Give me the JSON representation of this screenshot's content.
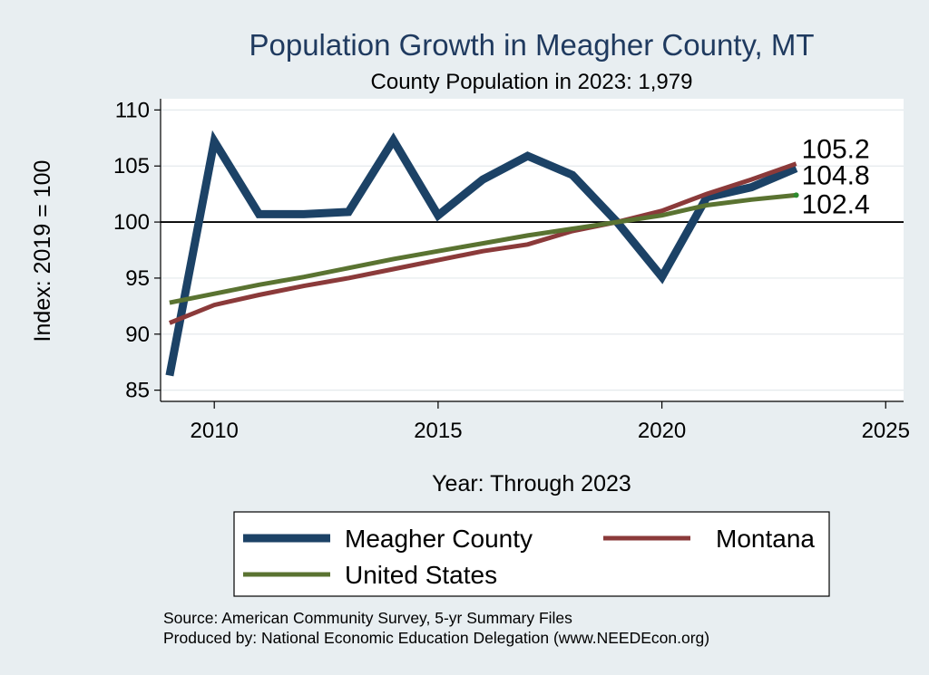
{
  "chart_data": {
    "type": "line",
    "title": "Population Growth in Meagher County, MT",
    "subtitle": "County Population in 2023: 1,979",
    "xlabel": "Year: Through 2023",
    "ylabel": "Index: 2019 = 100",
    "xlim": [
      2008.8,
      2025.4
    ],
    "ylim": [
      84,
      111
    ],
    "xticks": [
      2010,
      2015,
      2020,
      2025
    ],
    "yticks": [
      85,
      90,
      95,
      100,
      105,
      110
    ],
    "reference_line": 100,
    "series": [
      {
        "name": "Meagher  County",
        "color": "#1c4266",
        "x": [
          2009,
          2010,
          2011,
          2012,
          2013,
          2014,
          2015,
          2016,
          2017,
          2018,
          2019,
          2020,
          2021,
          2022,
          2023
        ],
        "values": [
          86.3,
          107.2,
          100.7,
          100.7,
          100.9,
          107.3,
          100.6,
          103.8,
          105.9,
          104.2,
          100.0,
          95.1,
          102.2,
          103.1,
          104.8
        ],
        "end_label": "104.8"
      },
      {
        "name": "Montana",
        "color": "#8b3a3a",
        "x": [
          2009,
          2010,
          2011,
          2012,
          2013,
          2014,
          2015,
          2016,
          2017,
          2018,
          2019,
          2020,
          2021,
          2022,
          2023
        ],
        "values": [
          91.0,
          92.6,
          93.5,
          94.3,
          95.0,
          95.8,
          96.6,
          97.4,
          98.0,
          99.2,
          100.0,
          101.0,
          102.5,
          103.8,
          105.2
        ],
        "end_label": "105.2"
      },
      {
        "name": "United States",
        "color": "#5a7331",
        "x": [
          2009,
          2010,
          2011,
          2012,
          2013,
          2014,
          2015,
          2016,
          2017,
          2018,
          2019,
          2020,
          2021,
          2022,
          2023
        ],
        "values": [
          92.8,
          93.6,
          94.4,
          95.1,
          95.9,
          96.7,
          97.4,
          98.1,
          98.8,
          99.4,
          100.0,
          100.6,
          101.5,
          102.0,
          102.4
        ],
        "end_label": "102.4"
      }
    ],
    "legend": [
      "Meagher  County",
      "Montana",
      "United States"
    ],
    "legend_position": "bottom",
    "source": "Source: American Community Survey, 5-yr Summary Files",
    "produced_by": "Produced by: National Economic Education Delegation (www.NEEDEcon.org)"
  }
}
